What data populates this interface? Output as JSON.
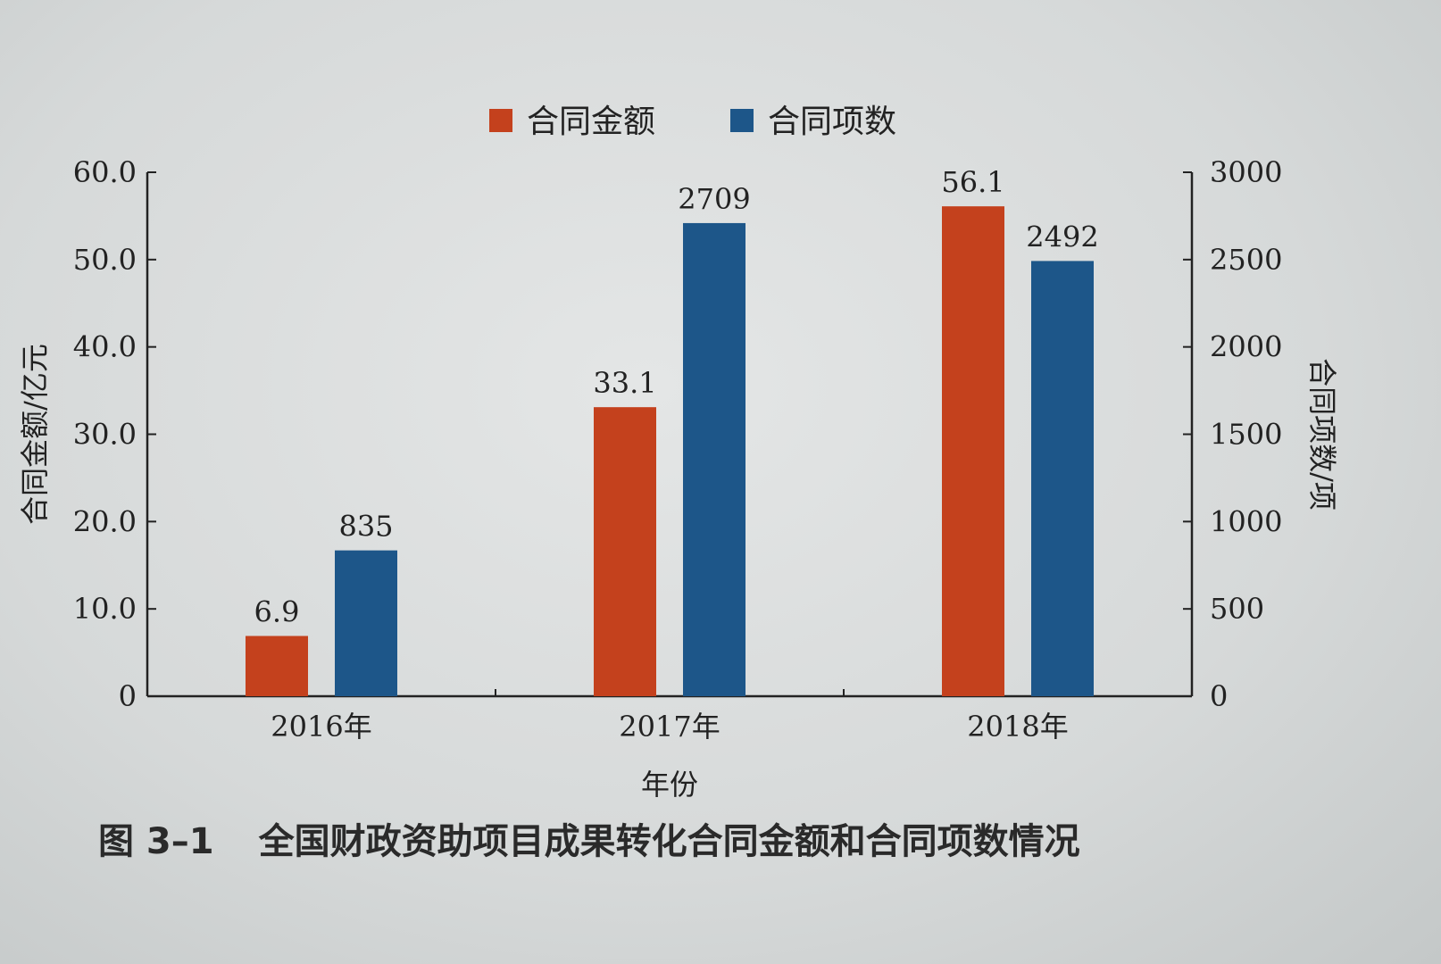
{
  "chart_data": {
    "type": "bar",
    "categories": [
      "2016年",
      "2017年",
      "2018年"
    ],
    "series": [
      {
        "name": "合同金额",
        "values": [
          6.9,
          33.1,
          56.1
        ],
        "axis": "left",
        "color": "#c4411d"
      },
      {
        "name": "合同项数",
        "values": [
          835,
          2709,
          2492
        ],
        "axis": "right",
        "color": "#1d5689"
      }
    ],
    "data_labels": [
      [
        "6.9",
        "33.1",
        "56.1"
      ],
      [
        "835",
        "2709",
        "2492"
      ]
    ],
    "xlabel": "年份",
    "ylabel_left": "合同金额/亿元",
    "ylabel_right": "合同项数/项",
    "ylim_left": [
      0,
      60
    ],
    "ylim_right": [
      0,
      3000
    ],
    "yticks_left": [
      "0",
      "10.0",
      "20.0",
      "30.0",
      "40.0",
      "50.0",
      "60.0"
    ],
    "yticks_right": [
      "0",
      "500",
      "1000",
      "1500",
      "2000",
      "2500",
      "3000"
    ],
    "legend_placement": "top-center",
    "grid": false
  },
  "caption": {
    "number": "图 3–1",
    "text": "全国财政资助项目成果转化合同金额和合同项数情况"
  }
}
